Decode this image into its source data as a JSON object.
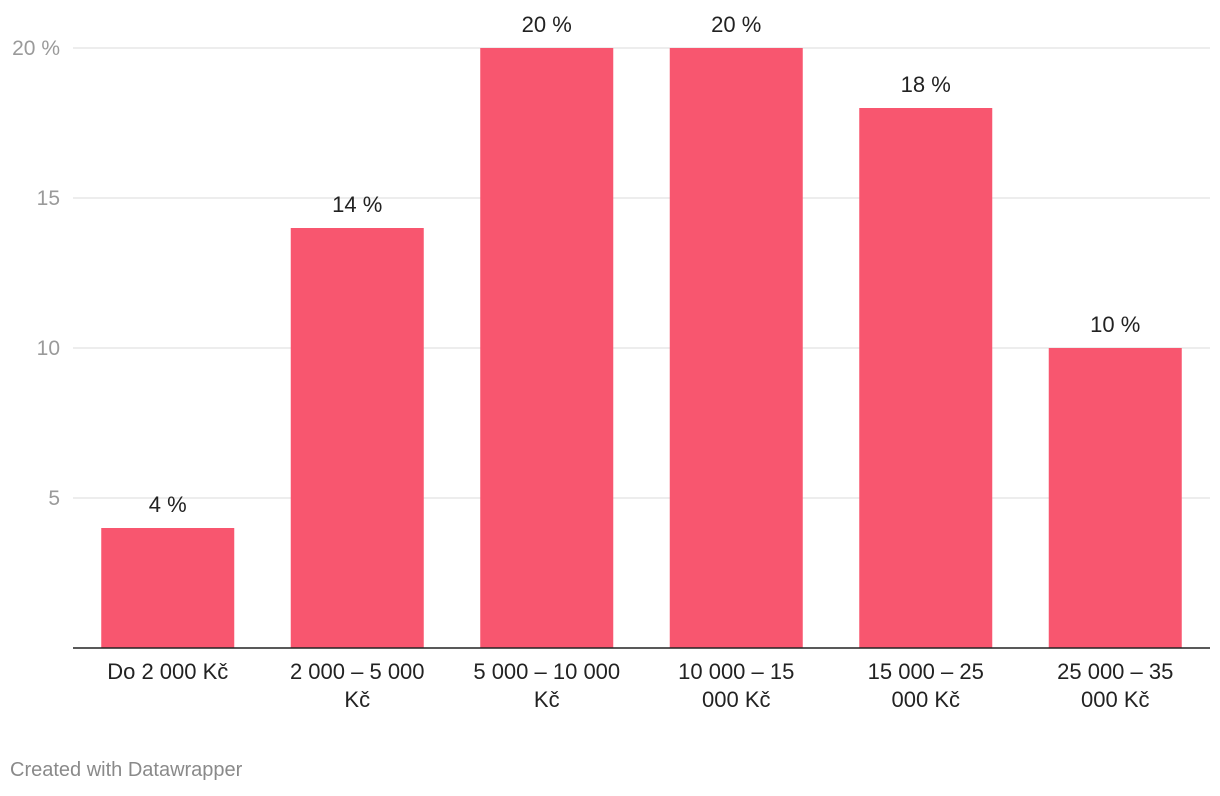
{
  "chart_data": {
    "type": "bar",
    "categories": [
      [
        "Do 2 000 Kč"
      ],
      [
        "2 000 – 5 000",
        "Kč"
      ],
      [
        "5 000 – 10 000",
        "Kč"
      ],
      [
        "10 000 – 15",
        "000 Kč"
      ],
      [
        "15 000 – 25",
        "000 Kč"
      ],
      [
        "25 000 – 35",
        "000 Kč"
      ]
    ],
    "values": [
      4,
      14,
      20,
      20,
      18,
      10
    ],
    "value_labels": [
      "4 %",
      "14 %",
      "20 %",
      "20 %",
      "18 %",
      "10 %"
    ],
    "yticks": [
      5,
      10,
      15,
      20
    ],
    "ytick_labels": [
      "5",
      "10",
      "15",
      "20 %"
    ],
    "ylim": [
      0,
      20
    ],
    "grid": true,
    "bar_color": "#f8566f"
  },
  "credit": "Created with Datawrapper"
}
